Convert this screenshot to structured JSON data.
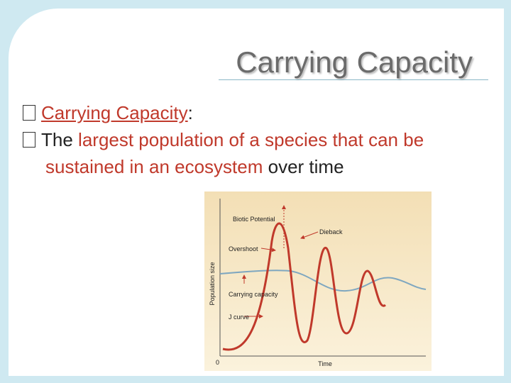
{
  "slide": {
    "title": "Carrying Capacity",
    "bullets": [
      {
        "term": "Carrying Capacity",
        "suffix": ":"
      },
      {
        "lead": "The",
        "definition": "largest population of a species that can be sustained in an ecosystem",
        "tail": "over time"
      }
    ],
    "figure": {
      "labels": {
        "biotic_potential": "Biotic Potential",
        "dieback": "Dieback",
        "overshoot": "Overshoot",
        "carrying_capacity": "Carrying capacity",
        "j_curve": "J curve",
        "y_axis": "Population size",
        "x_axis": "Time",
        "origin": "0"
      }
    }
  }
}
